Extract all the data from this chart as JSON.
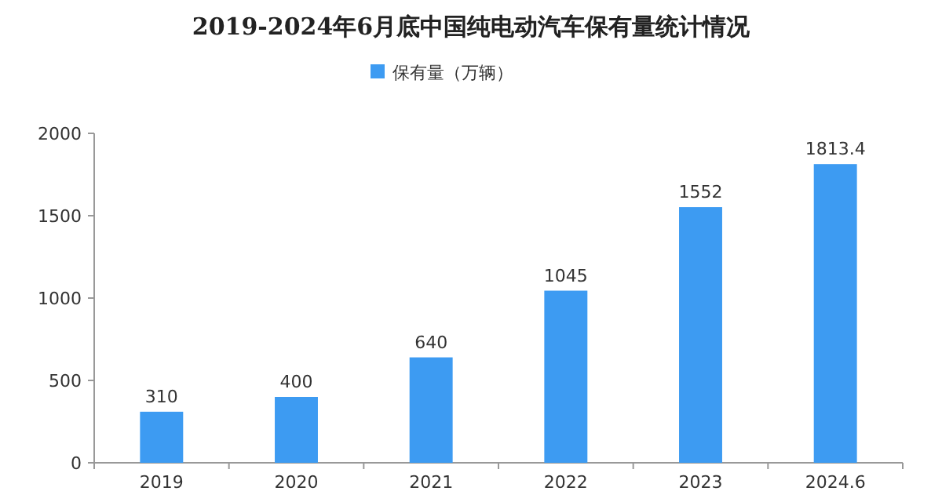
{
  "chart_data": {
    "type": "bar",
    "title": "2019-2024年6月底中国纯电动汽车保有量统计情况",
    "categories": [
      "2019",
      "2020",
      "2021",
      "2022",
      "2023",
      "2024.6"
    ],
    "series": [
      {
        "name": "保有量（万辆）",
        "color": "#3d9bf2",
        "values": [
          310,
          400,
          640,
          1045,
          1552,
          1813.4
        ]
      }
    ],
    "ylim": [
      0,
      2000
    ],
    "yticks": [
      0,
      500,
      1000,
      1500,
      2000
    ],
    "grid": false,
    "legend": "top",
    "data_labels": true
  }
}
